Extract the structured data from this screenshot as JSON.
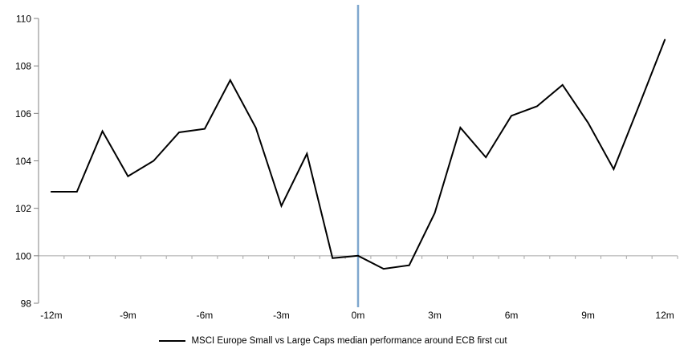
{
  "chart_data": {
    "type": "line",
    "title": "",
    "legend": "MSCI Europe Small vs Large Caps median performance around ECB first cut",
    "xlabel": "",
    "ylabel": "",
    "x_unit": "months relative to ECB first cut",
    "x": [
      -12,
      -11,
      -10,
      -9,
      -8,
      -7,
      -6,
      -5,
      -4,
      -3,
      -2,
      -1,
      0,
      1,
      2,
      3,
      4,
      5,
      6,
      7,
      8,
      9,
      10,
      11,
      12
    ],
    "values": [
      102.7,
      102.7,
      105.25,
      103.35,
      104.0,
      105.2,
      105.35,
      107.4,
      105.4,
      102.1,
      104.3,
      99.9,
      100.0,
      99.45,
      99.6,
      101.8,
      105.4,
      104.15,
      105.9,
      106.3,
      107.2,
      105.6,
      103.65,
      106.35,
      109.1
    ],
    "ylim": [
      98,
      110
    ],
    "y_ticks": [
      98,
      100,
      102,
      104,
      106,
      108,
      110
    ],
    "x_ticks": [
      {
        "month": -12,
        "label": "-12m"
      },
      {
        "month": -9,
        "label": "-9m"
      },
      {
        "month": -6,
        "label": "-6m"
      },
      {
        "month": -3,
        "label": "-3m"
      },
      {
        "month": 0,
        "label": "0m"
      },
      {
        "month": 3,
        "label": "3m"
      },
      {
        "month": 6,
        "label": "6m"
      },
      {
        "month": 9,
        "label": "9m"
      },
      {
        "month": 12,
        "label": "12m"
      }
    ],
    "event_line_month": 0,
    "axis_crosses_at": 100,
    "grid": false,
    "legend_position": "bottom",
    "colors": {
      "series": "#000000",
      "event_line": "#7fa7ce",
      "x_axis": "#a6a6a6",
      "y_axis": "#808080",
      "text": "#000000"
    }
  }
}
